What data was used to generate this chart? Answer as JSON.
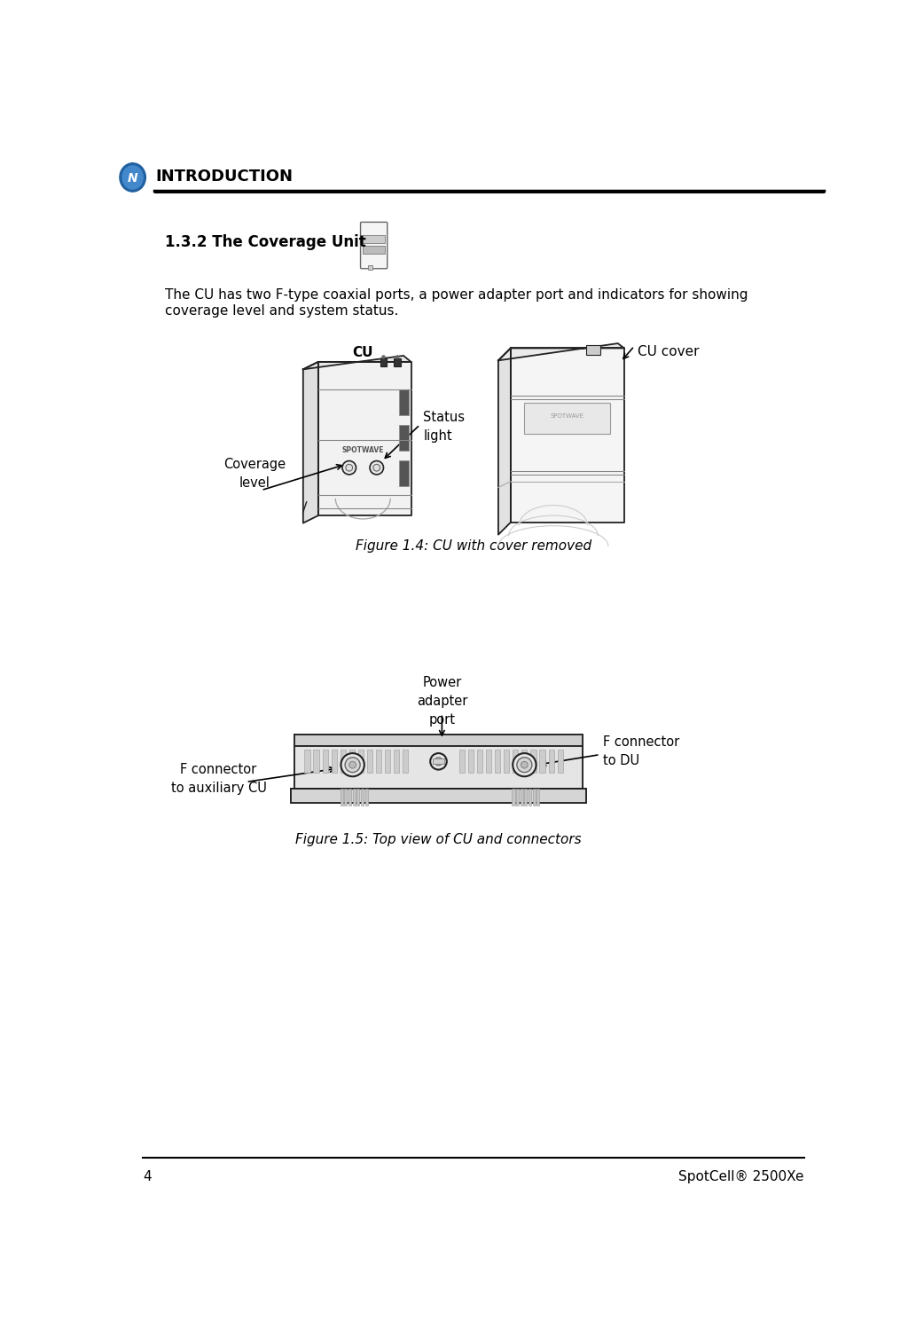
{
  "bg_color": "#ffffff",
  "header_text": "INTRODUCTION",
  "section_title": "1.3.2 The Coverage Unit",
  "body_text_1": "The CU has two F-type coaxial ports, a power adapter port and indicators for showing",
  "body_text_2": "coverage level and system status.",
  "fig14_caption": "Figure 1.4: CU with cover removed",
  "fig15_caption": "Figure 1.5: Top view of CU and connectors",
  "label_coverage": "Coverage\nlevel",
  "label_status": "Status\nlight",
  "label_cu": "CU",
  "label_cu_cover": "CU cover",
  "label_power": "Power\nadapter\nport",
  "label_f_du": "F connector\nto DU",
  "label_f_aux": "F connector\nto auxiliary CU",
  "page_number": "4",
  "product_name": "SpotCell® 2500Xe",
  "line_color": "#000000",
  "text_color": "#000000",
  "edge_color": "#222222",
  "fill_white": "#ffffff",
  "fill_light": "#f0f0f0",
  "fill_mid": "#d8d8d8",
  "fill_dark": "#555555"
}
